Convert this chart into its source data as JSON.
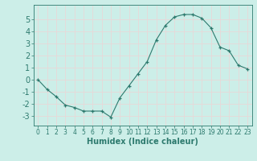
{
  "x": [
    0,
    1,
    2,
    3,
    4,
    5,
    6,
    7,
    8,
    9,
    10,
    11,
    12,
    13,
    14,
    15,
    16,
    17,
    18,
    19,
    20,
    21,
    22,
    23
  ],
  "y": [
    0.0,
    -0.8,
    -1.4,
    -2.1,
    -2.3,
    -2.6,
    -2.6,
    -2.6,
    -3.1,
    -1.5,
    -0.5,
    0.5,
    1.5,
    3.3,
    4.5,
    5.2,
    5.4,
    5.4,
    5.1,
    4.3,
    2.7,
    2.4,
    1.2,
    0.9
  ],
  "xlim": [
    -0.5,
    23.5
  ],
  "ylim": [
    -3.8,
    6.2
  ],
  "yticks": [
    -3,
    -2,
    -1,
    0,
    1,
    2,
    3,
    4,
    5
  ],
  "xticks": [
    0,
    1,
    2,
    3,
    4,
    5,
    6,
    7,
    8,
    9,
    10,
    11,
    12,
    13,
    14,
    15,
    16,
    17,
    18,
    19,
    20,
    21,
    22,
    23
  ],
  "xlabel": "Humidex (Indice chaleur)",
  "line_color": "#2d7a6e",
  "marker": "+",
  "bg_color": "#cceee8",
  "grid_color": "#e8d8d8",
  "tick_color": "#2d7a6e",
  "label_color": "#2d7a6e",
  "xlabel_fontsize": 7,
  "ytick_fontsize": 7,
  "xtick_fontsize": 5.5
}
